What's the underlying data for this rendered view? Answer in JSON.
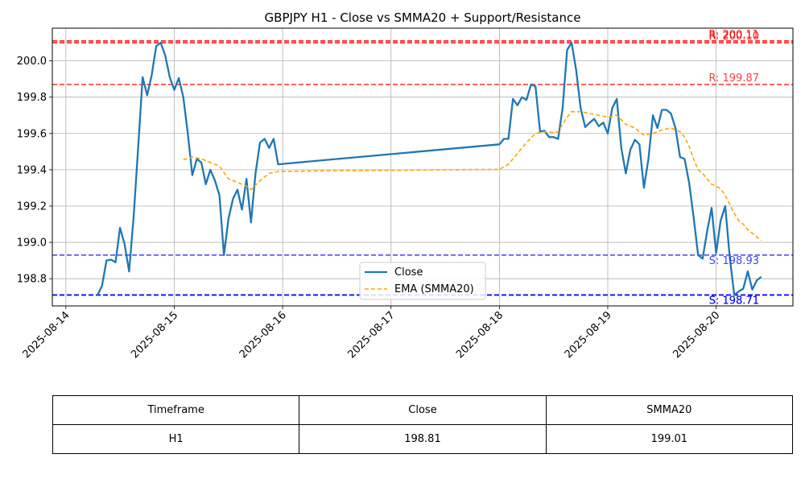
{
  "chart_data": {
    "type": "line",
    "title": "GBPJPY H1 - Close vs SMMA20 + Support/Resistance",
    "xlabel": "",
    "ylabel": "",
    "ylim": [
      198.65,
      200.18
    ],
    "xlim": [
      "2025-08-13 21:00",
      "2025-08-20 17:00"
    ],
    "x_ticks": [
      "2025-08-14",
      "2025-08-15",
      "2025-08-16",
      "2025-08-17",
      "2025-08-18",
      "2025-08-19",
      "2025-08-20"
    ],
    "y_ticks": [
      "198.8",
      "199.0",
      "199.2",
      "199.4",
      "199.6",
      "199.8",
      "200.0"
    ],
    "grid": true,
    "legend_position": "lower center",
    "colors": {
      "close": "#1f77b4",
      "smma": "#ffa500",
      "resistance": "#ff0000",
      "support": "#0000ff"
    },
    "series": [
      {
        "name": "Close",
        "points": [
          [
            "2025-08-14 07:00",
            198.71
          ],
          [
            "2025-08-14 08:00",
            198.76
          ],
          [
            "2025-08-14 09:00",
            198.9
          ],
          [
            "2025-08-14 10:00",
            198.905
          ],
          [
            "2025-08-14 11:00",
            198.89
          ],
          [
            "2025-08-14 12:00",
            199.08
          ],
          [
            "2025-08-14 13:00",
            198.99
          ],
          [
            "2025-08-14 14:00",
            198.84
          ],
          [
            "2025-08-14 15:00",
            199.14
          ],
          [
            "2025-08-14 16:00",
            199.52
          ],
          [
            "2025-08-14 17:00",
            199.91
          ],
          [
            "2025-08-14 18:00",
            199.81
          ],
          [
            "2025-08-14 19:00",
            199.92
          ],
          [
            "2025-08-14 20:00",
            200.08
          ],
          [
            "2025-08-14 21:00",
            200.1
          ],
          [
            "2025-08-14 22:00",
            200.03
          ],
          [
            "2025-08-14 23:00",
            199.91
          ],
          [
            "2025-08-15 00:00",
            199.84
          ],
          [
            "2025-08-15 01:00",
            199.905
          ],
          [
            "2025-08-15 02:00",
            199.8
          ],
          [
            "2025-08-15 03:00",
            199.6
          ],
          [
            "2025-08-15 04:00",
            199.37
          ],
          [
            "2025-08-15 05:00",
            199.46
          ],
          [
            "2025-08-15 06:00",
            199.44
          ],
          [
            "2025-08-15 07:00",
            199.32
          ],
          [
            "2025-08-15 08:00",
            199.4
          ],
          [
            "2025-08-15 09:00",
            199.34
          ],
          [
            "2025-08-15 10:00",
            199.26
          ],
          [
            "2025-08-15 11:00",
            198.93
          ],
          [
            "2025-08-15 12:00",
            199.13
          ],
          [
            "2025-08-15 13:00",
            199.24
          ],
          [
            "2025-08-15 14:00",
            199.29
          ],
          [
            "2025-08-15 15:00",
            199.18
          ],
          [
            "2025-08-15 16:00",
            199.35
          ],
          [
            "2025-08-15 17:00",
            199.11
          ],
          [
            "2025-08-15 18:00",
            199.38
          ],
          [
            "2025-08-15 19:00",
            199.55
          ],
          [
            "2025-08-15 20:00",
            199.57
          ],
          [
            "2025-08-15 21:00",
            199.52
          ],
          [
            "2025-08-15 22:00",
            199.57
          ],
          [
            "2025-08-15 23:00",
            199.43
          ],
          [
            "2025-08-18 00:00",
            199.54
          ],
          [
            "2025-08-18 01:00",
            199.57
          ],
          [
            "2025-08-18 02:00",
            199.57
          ],
          [
            "2025-08-18 03:00",
            199.79
          ],
          [
            "2025-08-18 04:00",
            199.755
          ],
          [
            "2025-08-18 05:00",
            199.8
          ],
          [
            "2025-08-18 06:00",
            199.785
          ],
          [
            "2025-08-18 07:00",
            199.87
          ],
          [
            "2025-08-18 08:00",
            199.86
          ],
          [
            "2025-08-18 09:00",
            199.61
          ],
          [
            "2025-08-18 10:00",
            199.615
          ],
          [
            "2025-08-18 11:00",
            199.58
          ],
          [
            "2025-08-18 12:00",
            199.58
          ],
          [
            "2025-08-18 13:00",
            199.57
          ],
          [
            "2025-08-18 14:00",
            199.74
          ],
          [
            "2025-08-18 15:00",
            200.06
          ],
          [
            "2025-08-18 16:00",
            200.1
          ],
          [
            "2025-08-18 17:00",
            199.95
          ],
          [
            "2025-08-18 18:00",
            199.74
          ],
          [
            "2025-08-18 19:00",
            199.635
          ],
          [
            "2025-08-18 20:00",
            199.66
          ],
          [
            "2025-08-18 21:00",
            199.68
          ],
          [
            "2025-08-18 22:00",
            199.64
          ],
          [
            "2025-08-18 23:00",
            199.66
          ],
          [
            "2025-08-19 00:00",
            199.6
          ],
          [
            "2025-08-19 01:00",
            199.74
          ],
          [
            "2025-08-19 02:00",
            199.79
          ],
          [
            "2025-08-19 03:00",
            199.52
          ],
          [
            "2025-08-19 04:00",
            199.38
          ],
          [
            "2025-08-19 05:00",
            199.51
          ],
          [
            "2025-08-19 06:00",
            199.565
          ],
          [
            "2025-08-19 07:00",
            199.54
          ],
          [
            "2025-08-19 08:00",
            199.3
          ],
          [
            "2025-08-19 09:00",
            199.46
          ],
          [
            "2025-08-19 10:00",
            199.7
          ],
          [
            "2025-08-19 11:00",
            199.63
          ],
          [
            "2025-08-19 12:00",
            199.73
          ],
          [
            "2025-08-19 13:00",
            199.73
          ],
          [
            "2025-08-19 14:00",
            199.71
          ],
          [
            "2025-08-19 15:00",
            199.63
          ],
          [
            "2025-08-19 16:00",
            199.47
          ],
          [
            "2025-08-19 17:00",
            199.46
          ],
          [
            "2025-08-19 18:00",
            199.33
          ],
          [
            "2025-08-19 19:00",
            199.14
          ],
          [
            "2025-08-19 20:00",
            198.93
          ],
          [
            "2025-08-19 21:00",
            198.91
          ],
          [
            "2025-08-19 22:00",
            199.06
          ],
          [
            "2025-08-19 23:00",
            199.19
          ],
          [
            "2025-08-20 00:00",
            198.94
          ],
          [
            "2025-08-20 01:00",
            199.12
          ],
          [
            "2025-08-20 02:00",
            199.2
          ],
          [
            "2025-08-20 03:00",
            198.92
          ],
          [
            "2025-08-20 04:00",
            198.71
          ],
          [
            "2025-08-20 05:00",
            198.73
          ],
          [
            "2025-08-20 06:00",
            198.745
          ],
          [
            "2025-08-20 07:00",
            198.84
          ],
          [
            "2025-08-20 08:00",
            198.74
          ],
          [
            "2025-08-20 09:00",
            198.79
          ],
          [
            "2025-08-20 10:00",
            198.81
          ]
        ]
      },
      {
        "name": "EMA (SMMA20)",
        "points": [
          [
            "2025-08-15 02:00",
            199.455
          ],
          [
            "2025-08-15 04:00",
            199.47
          ],
          [
            "2025-08-15 06:00",
            199.46
          ],
          [
            "2025-08-15 08:00",
            199.44
          ],
          [
            "2025-08-15 10:00",
            199.42
          ],
          [
            "2025-08-15 12:00",
            199.35
          ],
          [
            "2025-08-15 14:00",
            199.33
          ],
          [
            "2025-08-15 16:00",
            199.31
          ],
          [
            "2025-08-15 17:00",
            199.29
          ],
          [
            "2025-08-15 19:00",
            199.34
          ],
          [
            "2025-08-15 21:00",
            199.38
          ],
          [
            "2025-08-15 23:00",
            199.39
          ],
          [
            "2025-08-16 12:00",
            199.395
          ],
          [
            "2025-08-17 00:00",
            199.397
          ],
          [
            "2025-08-17 12:00",
            199.4
          ],
          [
            "2025-08-18 00:00",
            199.402
          ],
          [
            "2025-08-18 02:00",
            199.43
          ],
          [
            "2025-08-18 04:00",
            199.49
          ],
          [
            "2025-08-18 06:00",
            199.55
          ],
          [
            "2025-08-18 08:00",
            199.6
          ],
          [
            "2025-08-18 10:00",
            199.61
          ],
          [
            "2025-08-18 12:00",
            199.605
          ],
          [
            "2025-08-18 13:00",
            199.61
          ],
          [
            "2025-08-18 15:00",
            199.69
          ],
          [
            "2025-08-18 16:00",
            199.72
          ],
          [
            "2025-08-18 18:00",
            199.72
          ],
          [
            "2025-08-18 20:00",
            199.71
          ],
          [
            "2025-08-18 22:00",
            199.7
          ],
          [
            "2025-08-19 00:00",
            199.69
          ],
          [
            "2025-08-19 02:00",
            199.7
          ],
          [
            "2025-08-19 04:00",
            199.65
          ],
          [
            "2025-08-19 06:00",
            199.63
          ],
          [
            "2025-08-19 08:00",
            199.59
          ],
          [
            "2025-08-19 10:00",
            199.6
          ],
          [
            "2025-08-19 12:00",
            199.62
          ],
          [
            "2025-08-19 14:00",
            199.63
          ],
          [
            "2025-08-19 16:00",
            199.61
          ],
          [
            "2025-08-19 17:00",
            199.58
          ],
          [
            "2025-08-19 18:00",
            199.53
          ],
          [
            "2025-08-19 19:00",
            199.46
          ],
          [
            "2025-08-19 20:00",
            199.4
          ],
          [
            "2025-08-19 21:00",
            199.38
          ],
          [
            "2025-08-19 22:00",
            199.35
          ],
          [
            "2025-08-19 23:00",
            199.32
          ],
          [
            "2025-08-20 00:00",
            199.31
          ],
          [
            "2025-08-20 01:00",
            199.295
          ],
          [
            "2025-08-20 02:00",
            199.26
          ],
          [
            "2025-08-20 03:00",
            199.21
          ],
          [
            "2025-08-20 04:00",
            199.16
          ],
          [
            "2025-08-20 05:00",
            199.12
          ],
          [
            "2025-08-20 06:00",
            199.1
          ],
          [
            "2025-08-20 07:00",
            199.07
          ],
          [
            "2025-08-20 08:00",
            199.05
          ],
          [
            "2025-08-20 09:00",
            199.03
          ],
          [
            "2025-08-20 10:00",
            199.01
          ]
        ]
      }
    ],
    "levels": [
      {
        "kind": "resistance",
        "value": 200.1,
        "label": "R: 200.10",
        "alpha": 0.9
      },
      {
        "kind": "resistance",
        "value": 200.11,
        "label": "R: 200.11",
        "alpha": 0.9
      },
      {
        "kind": "resistance",
        "value": 199.87,
        "label": "R: 199.87",
        "alpha": 0.75
      },
      {
        "kind": "support",
        "value": 198.93,
        "label": "S: 198.93",
        "alpha": 0.75
      },
      {
        "kind": "support",
        "value": 198.71,
        "label": "S: 198.71",
        "alpha": 0.9
      },
      {
        "kind": "support",
        "value": 198.71,
        "label": "S: 198.71",
        "alpha": 0.9
      }
    ]
  },
  "table": {
    "headers": [
      "Timeframe",
      "Close",
      "SMMA20"
    ],
    "rows": [
      [
        "H1",
        "198.81",
        "199.01"
      ]
    ]
  }
}
